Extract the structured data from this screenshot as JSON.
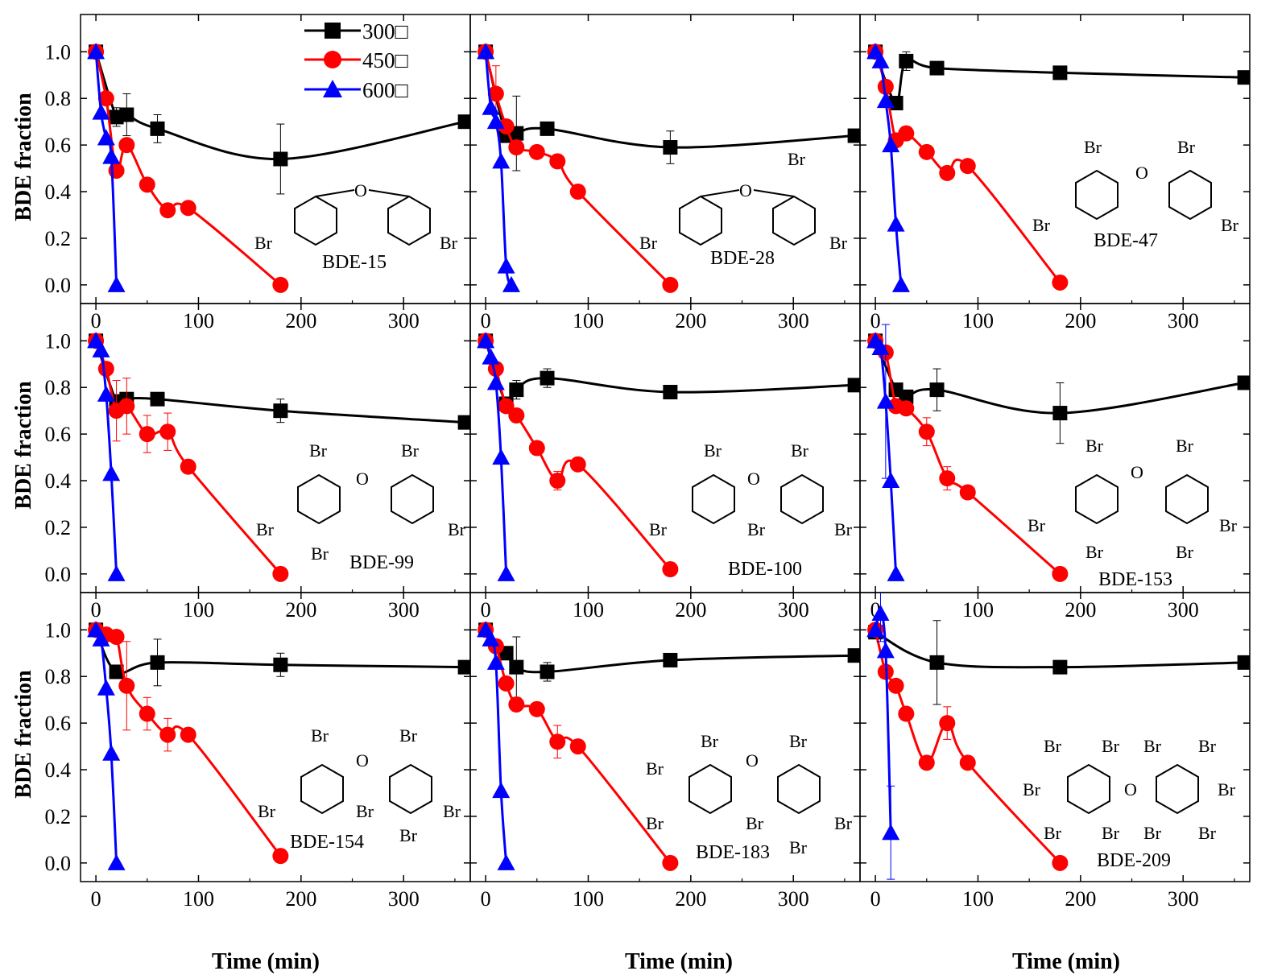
{
  "figure": {
    "y_axis_title": "BDE fraction",
    "x_axis_title": "Time (min)",
    "atom_br": "Br",
    "atom_o": "O"
  },
  "legend": [
    {
      "label": "300□",
      "color": "#000000",
      "marker": "square"
    },
    {
      "label": "450□",
      "color": "#ff0000",
      "marker": "circle"
    },
    {
      "label": "600□",
      "color": "#0000ff",
      "marker": "triangle"
    }
  ],
  "chart_data": [
    {
      "type": "scatter",
      "compound": "BDE-15",
      "xlim": [
        -15,
        365
      ],
      "ylim": [
        -0.08,
        1.16
      ],
      "x_ticks": [
        0,
        100,
        200,
        300
      ],
      "y_ticks": [
        0.0,
        0.2,
        0.4,
        0.6,
        0.8,
        1.0
      ],
      "series": [
        {
          "name": "300□",
          "x": [
            0,
            20,
            30,
            60,
            180,
            360
          ],
          "y": [
            1.0,
            0.72,
            0.73,
            0.67,
            0.54,
            0.7
          ],
          "err": [
            0,
            0.04,
            0.09,
            0.06,
            0.15,
            0
          ]
        },
        {
          "name": "450□",
          "x": [
            0,
            10,
            20,
            30,
            50,
            70,
            90,
            180
          ],
          "y": [
            1.0,
            0.8,
            0.49,
            0.6,
            0.43,
            0.32,
            0.33,
            0.0
          ],
          "err": [
            0,
            0,
            0,
            0,
            0,
            0,
            0,
            0
          ]
        },
        {
          "name": "600□",
          "x": [
            0,
            5,
            10,
            15,
            20
          ],
          "y": [
            1.0,
            0.74,
            0.63,
            0.55,
            0.0
          ],
          "err": [
            0,
            0,
            0,
            0,
            0
          ]
        }
      ]
    },
    {
      "type": "scatter",
      "compound": "BDE-28",
      "xlim": [
        -15,
        365
      ],
      "ylim": [
        -0.08,
        1.16
      ],
      "x_ticks": [
        0,
        100,
        200,
        300
      ],
      "y_ticks": [
        0.0,
        0.2,
        0.4,
        0.6,
        0.8,
        1.0
      ],
      "series": [
        {
          "name": "300□",
          "x": [
            0,
            20,
            30,
            60,
            180,
            360
          ],
          "y": [
            1.0,
            0.64,
            0.65,
            0.67,
            0.59,
            0.64
          ],
          "err": [
            0,
            0,
            0.16,
            0,
            0.07,
            0
          ]
        },
        {
          "name": "450□",
          "x": [
            0,
            10,
            20,
            30,
            50,
            70,
            90,
            180
          ],
          "y": [
            1.0,
            0.82,
            0.68,
            0.59,
            0.57,
            0.53,
            0.4,
            0.0
          ],
          "err": [
            0,
            0.12,
            0,
            0,
            0,
            0,
            0,
            0
          ]
        },
        {
          "name": "600□",
          "x": [
            0,
            5,
            10,
            15,
            20,
            25
          ],
          "y": [
            1.0,
            0.76,
            0.7,
            0.53,
            0.08,
            0.0
          ],
          "err": [
            0,
            0,
            0,
            0,
            0,
            0
          ]
        }
      ]
    },
    {
      "type": "scatter",
      "compound": "BDE-47",
      "xlim": [
        -15,
        365
      ],
      "ylim": [
        -0.08,
        1.16
      ],
      "x_ticks": [
        0,
        100,
        200,
        300
      ],
      "y_ticks": [
        0.0,
        0.2,
        0.4,
        0.6,
        0.8,
        1.0
      ],
      "series": [
        {
          "name": "300□",
          "x": [
            0,
            20,
            30,
            60,
            180,
            360
          ],
          "y": [
            1.0,
            0.78,
            0.96,
            0.93,
            0.91,
            0.89
          ],
          "err": [
            0,
            0,
            0.04,
            0,
            0,
            0
          ]
        },
        {
          "name": "450□",
          "x": [
            0,
            10,
            20,
            30,
            50,
            70,
            90,
            180
          ],
          "y": [
            1.0,
            0.85,
            0.62,
            0.65,
            0.57,
            0.48,
            0.51,
            0.01
          ],
          "err": [
            0,
            0,
            0,
            0,
            0,
            0,
            0,
            0
          ]
        },
        {
          "name": "600□",
          "x": [
            0,
            5,
            10,
            15,
            20,
            25
          ],
          "y": [
            1.0,
            0.96,
            0.79,
            0.6,
            0.26,
            0.0
          ],
          "err": [
            0,
            0,
            0,
            0,
            0,
            0
          ]
        }
      ]
    },
    {
      "type": "scatter",
      "compound": "BDE-99",
      "xlim": [
        -15,
        365
      ],
      "ylim": [
        -0.08,
        1.16
      ],
      "x_ticks": [
        0,
        100,
        200,
        300
      ],
      "y_ticks": [
        0.0,
        0.2,
        0.4,
        0.6,
        0.8,
        1.0
      ],
      "series": [
        {
          "name": "300□",
          "x": [
            0,
            20,
            30,
            60,
            180,
            360
          ],
          "y": [
            1.0,
            0.74,
            0.75,
            0.75,
            0.7,
            0.65
          ],
          "err": [
            0,
            0,
            0,
            0,
            0.05,
            0
          ]
        },
        {
          "name": "450□",
          "x": [
            0,
            10,
            20,
            30,
            50,
            70,
            90,
            180
          ],
          "y": [
            1.0,
            0.88,
            0.7,
            0.72,
            0.6,
            0.61,
            0.46,
            0.0
          ],
          "err": [
            0,
            0,
            0.13,
            0.12,
            0.08,
            0.08,
            0,
            0
          ]
        },
        {
          "name": "600□",
          "x": [
            0,
            5,
            10,
            15,
            20
          ],
          "y": [
            1.0,
            0.96,
            0.77,
            0.43,
            0.0
          ],
          "err": [
            0,
            0,
            0,
            0,
            0
          ]
        }
      ]
    },
    {
      "type": "scatter",
      "compound": "BDE-100",
      "xlim": [
        -15,
        365
      ],
      "ylim": [
        -0.08,
        1.16
      ],
      "x_ticks": [
        0,
        100,
        200,
        300
      ],
      "y_ticks": [
        0.0,
        0.2,
        0.4,
        0.6,
        0.8,
        1.0
      ],
      "series": [
        {
          "name": "300□",
          "x": [
            0,
            20,
            30,
            60,
            180,
            360
          ],
          "y": [
            1.0,
            0.73,
            0.79,
            0.84,
            0.78,
            0.81
          ],
          "err": [
            0,
            0,
            0.04,
            0.04,
            0,
            0
          ]
        },
        {
          "name": "450□",
          "x": [
            0,
            10,
            20,
            30,
            50,
            70,
            90,
            180
          ],
          "y": [
            1.0,
            0.88,
            0.72,
            0.68,
            0.54,
            0.4,
            0.47,
            0.02
          ],
          "err": [
            0,
            0,
            0,
            0,
            0,
            0.04,
            0,
            0
          ]
        },
        {
          "name": "600□",
          "x": [
            0,
            5,
            10,
            15,
            20
          ],
          "y": [
            1.0,
            0.93,
            0.82,
            0.5,
            0.0
          ],
          "err": [
            0,
            0,
            0,
            0,
            0
          ]
        }
      ]
    },
    {
      "type": "scatter",
      "compound": "BDE-153",
      "xlim": [
        -15,
        365
      ],
      "ylim": [
        -0.08,
        1.16
      ],
      "x_ticks": [
        0,
        100,
        200,
        300
      ],
      "y_ticks": [
        0.0,
        0.2,
        0.4,
        0.6,
        0.8,
        1.0
      ],
      "series": [
        {
          "name": "300□",
          "x": [
            0,
            20,
            30,
            60,
            180,
            360
          ],
          "y": [
            1.0,
            0.79,
            0.76,
            0.79,
            0.69,
            0.82
          ],
          "err": [
            0,
            0,
            0,
            0.09,
            0.13,
            0
          ]
        },
        {
          "name": "450□",
          "x": [
            0,
            10,
            20,
            30,
            50,
            70,
            90,
            180
          ],
          "y": [
            1.0,
            0.95,
            0.72,
            0.71,
            0.61,
            0.41,
            0.35,
            0.0
          ],
          "err": [
            0,
            0,
            0,
            0,
            0.06,
            0.05,
            0,
            0
          ]
        },
        {
          "name": "600□",
          "x": [
            0,
            5,
            10,
            15,
            20
          ],
          "y": [
            1.0,
            0.97,
            0.74,
            0.4,
            0.0
          ],
          "err": [
            0,
            0,
            0.33,
            0,
            0
          ]
        }
      ]
    },
    {
      "type": "scatter",
      "compound": "BDE-154",
      "xlim": [
        -15,
        365
      ],
      "ylim": [
        -0.08,
        1.16
      ],
      "x_ticks": [
        0,
        100,
        200,
        300
      ],
      "y_ticks": [
        0.0,
        0.2,
        0.4,
        0.6,
        0.8,
        1.0
      ],
      "series": [
        {
          "name": "300□",
          "x": [
            0,
            20,
            60,
            180,
            360
          ],
          "y": [
            1.0,
            0.82,
            0.86,
            0.85,
            0.84
          ],
          "err": [
            0,
            0,
            0.1,
            0.05,
            0
          ]
        },
        {
          "name": "450□",
          "x": [
            0,
            10,
            20,
            30,
            50,
            70,
            90,
            180
          ],
          "y": [
            1.0,
            0.98,
            0.97,
            0.76,
            0.64,
            0.55,
            0.55,
            0.03
          ],
          "err": [
            0,
            0,
            0,
            0.19,
            0.07,
            0.07,
            0,
            0
          ]
        },
        {
          "name": "600□",
          "x": [
            0,
            5,
            10,
            15,
            20
          ],
          "y": [
            1.0,
            0.96,
            0.75,
            0.47,
            0.0
          ],
          "err": [
            0,
            0,
            0,
            0,
            0
          ]
        }
      ]
    },
    {
      "type": "scatter",
      "compound": "BDE-183",
      "xlim": [
        -15,
        365
      ],
      "ylim": [
        -0.08,
        1.16
      ],
      "x_ticks": [
        0,
        100,
        200,
        300
      ],
      "y_ticks": [
        0.0,
        0.2,
        0.4,
        0.6,
        0.8,
        1.0
      ],
      "series": [
        {
          "name": "300□",
          "x": [
            0,
            20,
            30,
            60,
            180,
            360
          ],
          "y": [
            1.0,
            0.9,
            0.84,
            0.82,
            0.87,
            0.89
          ],
          "err": [
            0,
            0,
            0.13,
            0.04,
            0,
            0
          ]
        },
        {
          "name": "450□",
          "x": [
            0,
            10,
            20,
            30,
            50,
            70,
            90,
            180
          ],
          "y": [
            1.0,
            0.93,
            0.77,
            0.68,
            0.66,
            0.52,
            0.5,
            0.0
          ],
          "err": [
            0,
            0,
            0,
            0,
            0,
            0.07,
            0,
            0
          ]
        },
        {
          "name": "600□",
          "x": [
            0,
            5,
            10,
            15,
            20
          ],
          "y": [
            1.0,
            0.96,
            0.86,
            0.31,
            0.0
          ],
          "err": [
            0,
            0,
            0,
            0,
            0
          ]
        }
      ]
    },
    {
      "type": "scatter",
      "compound": "BDE-209",
      "xlim": [
        -15,
        365
      ],
      "ylim": [
        -0.08,
        1.16
      ],
      "x_ticks": [
        0,
        100,
        200,
        300
      ],
      "y_ticks": [
        0.0,
        0.2,
        0.4,
        0.6,
        0.8,
        1.0
      ],
      "series": [
        {
          "name": "300□",
          "x": [
            0,
            60,
            180,
            360
          ],
          "y": [
            0.99,
            0.86,
            0.84,
            0.86
          ],
          "err": [
            0,
            0.18,
            0,
            0
          ]
        },
        {
          "name": "450□",
          "x": [
            0,
            10,
            20,
            30,
            50,
            70,
            90,
            180
          ],
          "y": [
            1.0,
            0.82,
            0.76,
            0.64,
            0.43,
            0.6,
            0.43,
            0.0
          ],
          "err": [
            0,
            0,
            0,
            0,
            0,
            0.07,
            0,
            0
          ]
        },
        {
          "name": "600□",
          "x": [
            0,
            5,
            10,
            15
          ],
          "y": [
            1.0,
            1.07,
            0.91,
            0.13
          ],
          "err": [
            0,
            0.12,
            0,
            0.2
          ]
        }
      ]
    }
  ]
}
